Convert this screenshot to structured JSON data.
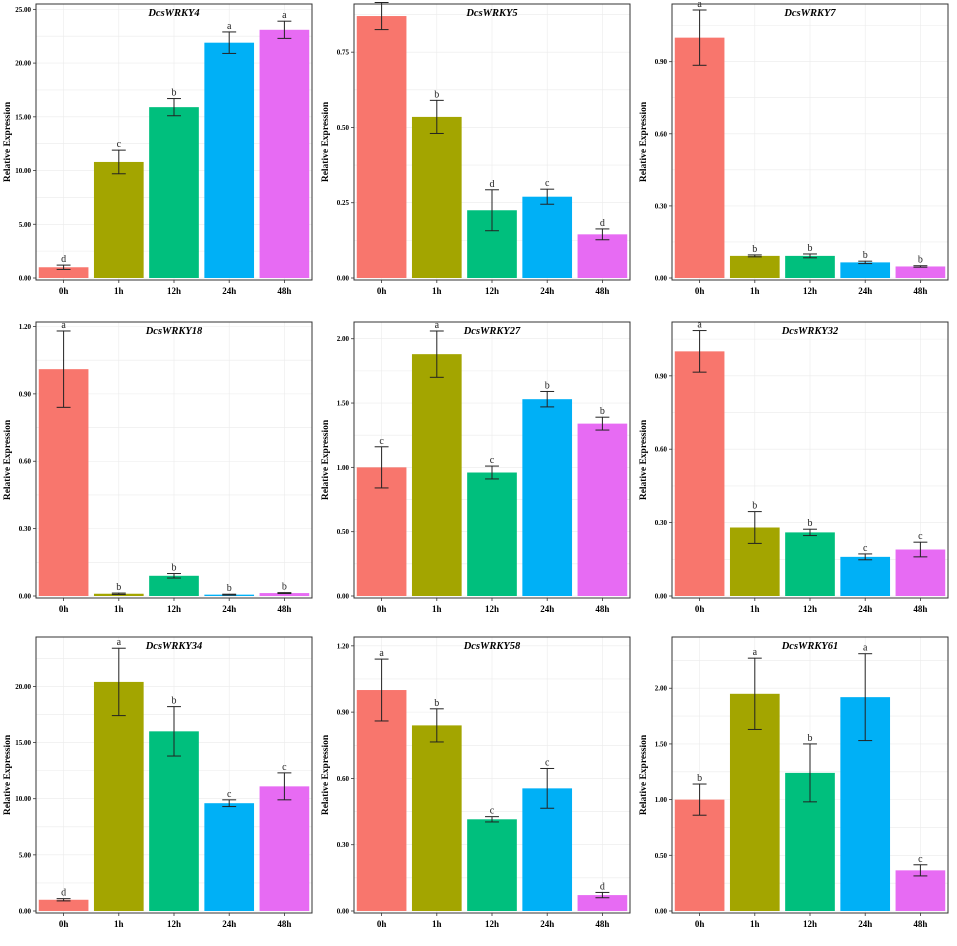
{
  "figure": {
    "description_axis_label": "Relative Expression"
  },
  "chart_data": [
    {
      "type": "bar",
      "title": "DcsWRKY4",
      "ylabel": "Relative Expression",
      "categories": [
        "0h",
        "1h",
        "12h",
        "24h",
        "48h"
      ],
      "values": [
        1.0,
        10.8,
        15.9,
        21.9,
        23.1
      ],
      "errors": [
        0.2,
        1.1,
        0.8,
        1.0,
        0.8
      ],
      "letters": [
        "d",
        "c",
        "b",
        "a",
        "a"
      ],
      "ylim": [
        0,
        25.5
      ],
      "yticks": [
        "0.00",
        "5.00",
        "10.00",
        "15.00",
        "20.00",
        "25.00"
      ],
      "ytick_values": [
        0,
        5,
        10,
        15,
        20,
        25
      ]
    },
    {
      "type": "bar",
      "title": "DcsWRKY5",
      "ylabel": "Relative Expression",
      "categories": [
        "0h",
        "1h",
        "12h",
        "24h",
        "48h"
      ],
      "values": [
        0.87,
        0.535,
        0.225,
        0.27,
        0.145
      ],
      "errors": [
        0.045,
        0.055,
        0.068,
        0.025,
        0.018
      ],
      "letters": [
        "a",
        "b",
        "d",
        "c",
        "d"
      ],
      "ylim": [
        0,
        0.91
      ],
      "yticks": [
        "0.00",
        "0.25",
        "0.50",
        "0.75"
      ],
      "ytick_values": [
        0,
        0.25,
        0.5,
        0.75
      ]
    },
    {
      "type": "bar",
      "title": "DcsWRKY7",
      "ylabel": "Relative Expression",
      "categories": [
        "0h",
        "1h",
        "12h",
        "24h",
        "48h"
      ],
      "values": [
        1.0,
        0.092,
        0.092,
        0.065,
        0.048
      ],
      "errors": [
        0.115,
        0.004,
        0.008,
        0.005,
        0.003
      ],
      "letters": [
        "a",
        "b",
        "b",
        "b",
        "b"
      ],
      "ylim": [
        0,
        1.14
      ],
      "yticks": [
        "0.00",
        "0.30",
        "0.60",
        "0.90"
      ],
      "ytick_values": [
        0,
        0.3,
        0.6,
        0.9
      ]
    },
    {
      "type": "bar",
      "title": "DcsWRKY18",
      "ylabel": "Relative Expression",
      "categories": [
        "0h",
        "1h",
        "12h",
        "24h",
        "48h"
      ],
      "values": [
        1.01,
        0.01,
        0.09,
        0.006,
        0.013
      ],
      "errors": [
        0.17,
        0.003,
        0.01,
        0.002,
        0.002
      ],
      "letters": [
        "a",
        "b",
        "b",
        "b",
        "b"
      ],
      "ylim": [
        0,
        1.22
      ],
      "yticks": [
        "0.00",
        "0.30",
        "0.60",
        "0.90",
        "1.20"
      ],
      "ytick_values": [
        0,
        0.3,
        0.6,
        0.9,
        1.2
      ]
    },
    {
      "type": "bar",
      "title": "DcsWRKY27",
      "ylabel": "Relative Expression",
      "categories": [
        "0h",
        "1h",
        "12h",
        "24h",
        "48h"
      ],
      "values": [
        1.0,
        1.88,
        0.96,
        1.53,
        1.34
      ],
      "errors": [
        0.16,
        0.18,
        0.05,
        0.06,
        0.05
      ],
      "letters": [
        "c",
        "a",
        "c",
        "b",
        "b"
      ],
      "ylim": [
        0,
        2.13
      ],
      "yticks": [
        "0.00",
        "0.50",
        "1.00",
        "1.50",
        "2.00"
      ],
      "ytick_values": [
        0,
        0.5,
        1.0,
        1.5,
        2.0
      ]
    },
    {
      "type": "bar",
      "title": "DcsWRKY32",
      "ylabel": "Relative Expression",
      "categories": [
        "0h",
        "1h",
        "12h",
        "24h",
        "48h"
      ],
      "values": [
        1.0,
        0.28,
        0.26,
        0.16,
        0.19
      ],
      "errors": [
        0.085,
        0.065,
        0.013,
        0.012,
        0.03
      ],
      "letters": [
        "a",
        "b",
        "b",
        "c",
        "c"
      ],
      "ylim": [
        0,
        1.12
      ],
      "yticks": [
        "0.00",
        "0.30",
        "0.60",
        "0.90"
      ],
      "ytick_values": [
        0,
        0.3,
        0.6,
        0.9
      ]
    },
    {
      "type": "bar",
      "title": "DcsWRKY34",
      "ylabel": "Relative Expression",
      "categories": [
        "0h",
        "1h",
        "12h",
        "24h",
        "48h"
      ],
      "values": [
        1.0,
        20.4,
        16.0,
        9.6,
        11.1
      ],
      "errors": [
        0.1,
        3.0,
        2.2,
        0.3,
        1.2
      ],
      "letters": [
        "d",
        "a",
        "b",
        "c",
        "c"
      ],
      "ylim": [
        0,
        24.4
      ],
      "yticks": [
        "0.00",
        "5.00",
        "10.00",
        "15.00",
        "20.00"
      ],
      "ytick_values": [
        0,
        5,
        10,
        15,
        20
      ]
    },
    {
      "type": "bar",
      "title": "DcsWRKY58",
      "ylabel": "Relative Expression",
      "categories": [
        "0h",
        "1h",
        "12h",
        "24h",
        "48h"
      ],
      "values": [
        1.0,
        0.84,
        0.415,
        0.555,
        0.072
      ],
      "errors": [
        0.14,
        0.075,
        0.012,
        0.09,
        0.012
      ],
      "letters": [
        "a",
        "b",
        "c",
        "c",
        "d"
      ],
      "ylim": [
        0,
        1.24
      ],
      "yticks": [
        "0.00",
        "0.30",
        "0.60",
        "0.90",
        "1.20"
      ],
      "ytick_values": [
        0,
        0.3,
        0.6,
        0.9,
        1.2
      ]
    },
    {
      "type": "bar",
      "title": "DcsWRKY61",
      "ylabel": "Relative Expression",
      "categories": [
        "0h",
        "1h",
        "12h",
        "24h",
        "48h"
      ],
      "values": [
        1.0,
        1.95,
        1.24,
        1.92,
        0.365
      ],
      "errors": [
        0.14,
        0.32,
        0.26,
        0.39,
        0.05
      ],
      "letters": [
        "b",
        "a",
        "b",
        "a",
        "c"
      ],
      "ylim": [
        0,
        2.46
      ],
      "yticks": [
        "0.00",
        "0.50",
        "1.00",
        "1.50",
        "2.00"
      ],
      "ytick_values": [
        0,
        0.5,
        1.0,
        1.5,
        2.0
      ]
    }
  ],
  "colors": {
    "0h": "#F8766D",
    "1h": "#A3A500",
    "12h": "#00BF7D",
    "24h": "#00B0F6",
    "48h": "#E76BF3"
  }
}
